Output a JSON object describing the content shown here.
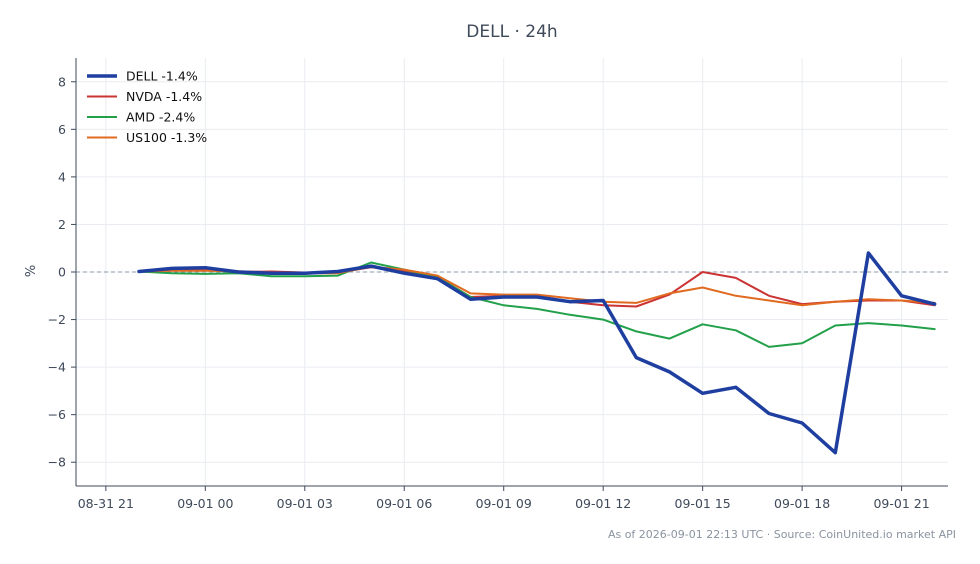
{
  "chart_data": {
    "type": "line",
    "title": "DELL · 24h",
    "xlabel": "",
    "ylabel": "%",
    "x_ticks": [
      "08-31 21",
      "09-01 00",
      "09-01 03",
      "09-01 06",
      "09-01 09",
      "09-01 12",
      "09-01 15",
      "09-01 18",
      "09-01 21"
    ],
    "x_tick_hours": [
      -3,
      0,
      3,
      6,
      9,
      12,
      15,
      18,
      21
    ],
    "x_hours": [
      -2,
      -1,
      0,
      1,
      2,
      3,
      4,
      5,
      6,
      7,
      8,
      9,
      10,
      11,
      12,
      13,
      14,
      15,
      16,
      17,
      18,
      19,
      20,
      21,
      22
    ],
    "xlim_hours": [
      -3.9,
      22.4
    ],
    "ylim": [
      -9,
      9
    ],
    "y_ticks": [
      -8,
      -6,
      -4,
      -2,
      0,
      2,
      4,
      6,
      8
    ],
    "y_tick_labels": [
      "−8",
      "−6",
      "−4",
      "−2",
      "0",
      "2",
      "4",
      "6",
      "8"
    ],
    "grid": true,
    "zero_line": true,
    "legend_position": "top-left",
    "series": [
      {
        "name": "DELL -1.4%",
        "color": "#1f3fa0",
        "width": 3.5,
        "values": [
          0.02,
          0.15,
          0.18,
          0.0,
          -0.05,
          -0.05,
          0.02,
          0.25,
          -0.05,
          -0.28,
          -1.15,
          -1.05,
          -1.05,
          -1.25,
          -1.2,
          -3.6,
          -4.2,
          -5.1,
          -4.85,
          -5.95,
          -6.35,
          -7.6,
          0.8,
          -1.0,
          -1.35
        ]
      },
      {
        "name": "NVDA -1.4%",
        "color": "#cc3333",
        "width": 2,
        "values": [
          0.02,
          0.08,
          0.1,
          0.0,
          0.02,
          -0.02,
          -0.02,
          0.2,
          0.05,
          -0.2,
          -1.05,
          -1.0,
          -1.0,
          -1.25,
          -1.4,
          -1.45,
          -0.95,
          0.0,
          -0.25,
          -1.0,
          -1.35,
          -1.25,
          -1.2,
          -1.2,
          -1.4
        ]
      },
      {
        "name": "AMD -2.4%",
        "color": "#22a04a",
        "width": 2,
        "values": [
          0.02,
          -0.05,
          -0.08,
          -0.05,
          -0.18,
          -0.18,
          -0.15,
          0.4,
          0.1,
          -0.22,
          -1.05,
          -1.4,
          -1.55,
          -1.8,
          -2.0,
          -2.5,
          -2.8,
          -2.2,
          -2.45,
          -3.15,
          -3.0,
          -2.25,
          -2.15,
          -2.25,
          -2.4
        ]
      },
      {
        "name": "US100 -1.3%",
        "color": "#e06a20",
        "width": 2,
        "values": [
          0.02,
          0.05,
          0.05,
          0.03,
          -0.02,
          -0.05,
          -0.05,
          0.22,
          0.1,
          -0.15,
          -0.9,
          -0.95,
          -0.95,
          -1.1,
          -1.25,
          -1.3,
          -0.9,
          -0.65,
          -1.0,
          -1.2,
          -1.4,
          -1.25,
          -1.15,
          -1.2,
          -1.3
        ]
      }
    ]
  },
  "footer": {
    "text": "As of 2026-09-01 22:13 UTC · Source: CoinUnited.io market API"
  }
}
